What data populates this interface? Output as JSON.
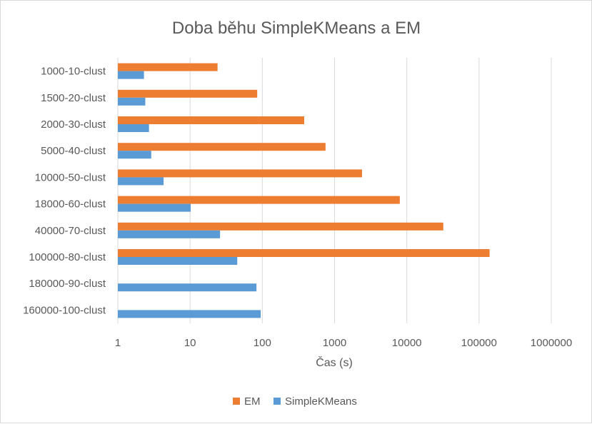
{
  "chart_data": {
    "type": "bar",
    "orientation": "horizontal",
    "title": "Doba běhu SimpleKMeans a EM",
    "xlabel": "Čas (s)",
    "ylabel": "",
    "xscale": "log",
    "xlim": [
      1,
      1000000
    ],
    "x_ticks": [
      "1",
      "10",
      "100",
      "1000",
      "10000",
      "100000",
      "1000000"
    ],
    "grid": true,
    "legend_position": "bottom",
    "categories": [
      "1000-10-clust",
      "1500-20-clust",
      "2000-30-clust",
      "5000-40-clust",
      "10000-50-clust",
      "18000-60-clust",
      "40000-70-clust",
      "100000-80-clust",
      "180000-90-clust",
      "160000-100-clust"
    ],
    "series": [
      {
        "name": "EM",
        "color": "#ed7d31",
        "values": [
          24,
          85,
          380,
          750,
          2400,
          8000,
          32000,
          140000,
          null,
          null
        ]
      },
      {
        "name": "SimpleKMeans",
        "color": "#5b9bd5",
        "values": [
          2.3,
          2.4,
          2.7,
          2.9,
          4.3,
          10.2,
          26,
          45,
          83,
          95
        ]
      }
    ]
  }
}
